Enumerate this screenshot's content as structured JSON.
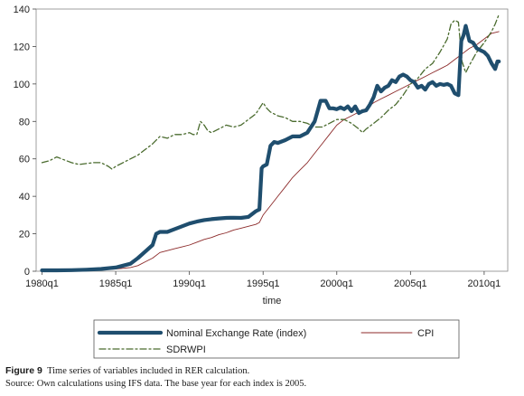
{
  "chart_data": {
    "type": "line",
    "xlabel": "time",
    "ylabel": "",
    "ylim": [
      0,
      140
    ],
    "y_ticks": [
      "0",
      "20",
      "40",
      "60",
      "80",
      "100",
      "120",
      "140"
    ],
    "x_ticks": [
      {
        "t": 1980.0,
        "label": "1980q1"
      },
      {
        "t": 1985.0,
        "label": "1985q1"
      },
      {
        "t": 1990.0,
        "label": "1990q1"
      },
      {
        "t": 1995.0,
        "label": "1995q1"
      },
      {
        "t": 2000.0,
        "label": "2000q1"
      },
      {
        "t": 2005.0,
        "label": "2005q1"
      },
      {
        "t": 2010.0,
        "label": "2010q1"
      }
    ],
    "xlim": [
      1979.6,
      2011.6
    ],
    "grid": false,
    "legend_position": "bottom",
    "series": [
      {
        "name": "Nominal Exchange Rate (index)",
        "color": "#1f4e6e",
        "style": "thick",
        "points": [
          [
            1980.0,
            0.5
          ],
          [
            1981.0,
            0.5
          ],
          [
            1982.0,
            0.6
          ],
          [
            1983.0,
            0.8
          ],
          [
            1984.0,
            1.2
          ],
          [
            1985.0,
            2
          ],
          [
            1985.5,
            3
          ],
          [
            1986.0,
            4
          ],
          [
            1986.5,
            7
          ],
          [
            1987.0,
            10.5
          ],
          [
            1987.5,
            14
          ],
          [
            1987.75,
            20
          ],
          [
            1988.0,
            21
          ],
          [
            1988.5,
            21
          ],
          [
            1989.0,
            22.5
          ],
          [
            1989.5,
            24
          ],
          [
            1990.0,
            25.5
          ],
          [
            1990.5,
            26.5
          ],
          [
            1991.0,
            27.3
          ],
          [
            1991.5,
            27.8
          ],
          [
            1992.0,
            28.2
          ],
          [
            1992.5,
            28.5
          ],
          [
            1993.0,
            28.6
          ],
          [
            1993.5,
            28.5
          ],
          [
            1994.0,
            29
          ],
          [
            1994.25,
            30.5
          ],
          [
            1994.5,
            32
          ],
          [
            1994.75,
            33
          ],
          [
            1994.9,
            55
          ],
          [
            1995.0,
            56
          ],
          [
            1995.25,
            57
          ],
          [
            1995.5,
            67
          ],
          [
            1995.75,
            69
          ],
          [
            1996.0,
            68.5
          ],
          [
            1996.5,
            70
          ],
          [
            1997.0,
            72
          ],
          [
            1997.5,
            72
          ],
          [
            1998.0,
            74
          ],
          [
            1998.5,
            80
          ],
          [
            1998.9,
            91
          ],
          [
            1999.25,
            91
          ],
          [
            1999.5,
            87
          ],
          [
            1999.75,
            87
          ],
          [
            2000.0,
            86.5
          ],
          [
            2000.25,
            87.5
          ],
          [
            2000.5,
            86.5
          ],
          [
            2000.75,
            88
          ],
          [
            2001.0,
            85.5
          ],
          [
            2001.25,
            88
          ],
          [
            2001.5,
            84.5
          ],
          [
            2001.75,
            85.5
          ],
          [
            2002.0,
            86
          ],
          [
            2002.25,
            89
          ],
          [
            2002.5,
            93
          ],
          [
            2002.75,
            99
          ],
          [
            2003.0,
            96
          ],
          [
            2003.25,
            98
          ],
          [
            2003.5,
            99
          ],
          [
            2003.75,
            102
          ],
          [
            2004.0,
            101
          ],
          [
            2004.25,
            104
          ],
          [
            2004.5,
            105
          ],
          [
            2004.75,
            104
          ],
          [
            2005.0,
            102
          ],
          [
            2005.25,
            101
          ],
          [
            2005.5,
            98
          ],
          [
            2005.75,
            99
          ],
          [
            2006.0,
            97
          ],
          [
            2006.25,
            100
          ],
          [
            2006.5,
            101
          ],
          [
            2006.75,
            99
          ],
          [
            2007.0,
            100
          ],
          [
            2007.25,
            99.5
          ],
          [
            2007.5,
            100
          ],
          [
            2007.75,
            99
          ],
          [
            2008.0,
            95
          ],
          [
            2008.25,
            94
          ],
          [
            2008.45,
            123
          ],
          [
            2008.6,
            126
          ],
          [
            2008.75,
            131
          ],
          [
            2009.0,
            123
          ],
          [
            2009.25,
            122
          ],
          [
            2009.5,
            119
          ],
          [
            2009.75,
            118
          ],
          [
            2010.0,
            117
          ],
          [
            2010.25,
            115
          ],
          [
            2010.5,
            111
          ],
          [
            2010.75,
            108
          ],
          [
            2010.9,
            112
          ],
          [
            2011.0,
            112
          ]
        ]
      },
      {
        "name": "CPI",
        "color": "#8c2a2a",
        "style": "thin",
        "points": [
          [
            1980.0,
            0.2
          ],
          [
            1982.0,
            0.4
          ],
          [
            1984.0,
            0.8
          ],
          [
            1985.0,
            1.2
          ],
          [
            1986.0,
            2
          ],
          [
            1986.5,
            3
          ],
          [
            1987.0,
            5
          ],
          [
            1987.5,
            7
          ],
          [
            1988.0,
            10
          ],
          [
            1988.5,
            11
          ],
          [
            1989.0,
            12
          ],
          [
            1989.5,
            13
          ],
          [
            1990.0,
            14
          ],
          [
            1990.5,
            15.5
          ],
          [
            1991.0,
            17
          ],
          [
            1991.5,
            18
          ],
          [
            1992.0,
            19.5
          ],
          [
            1992.5,
            20.5
          ],
          [
            1993.0,
            22
          ],
          [
            1993.5,
            23
          ],
          [
            1994.0,
            24
          ],
          [
            1994.5,
            25
          ],
          [
            1994.75,
            26
          ],
          [
            1995.0,
            30
          ],
          [
            1995.5,
            35
          ],
          [
            1996.0,
            40
          ],
          [
            1996.5,
            45
          ],
          [
            1997.0,
            50
          ],
          [
            1997.5,
            54
          ],
          [
            1998.0,
            58
          ],
          [
            1998.5,
            63
          ],
          [
            1999.0,
            68
          ],
          [
            1999.5,
            73
          ],
          [
            2000.0,
            78
          ],
          [
            2000.5,
            81
          ],
          [
            2001.0,
            83
          ],
          [
            2001.5,
            85
          ],
          [
            2002.0,
            87
          ],
          [
            2002.5,
            90
          ],
          [
            2003.0,
            92
          ],
          [
            2003.5,
            94
          ],
          [
            2004.0,
            96
          ],
          [
            2004.5,
            98
          ],
          [
            2005.0,
            100
          ],
          [
            2005.5,
            102
          ],
          [
            2006.0,
            104
          ],
          [
            2006.5,
            106
          ],
          [
            2007.0,
            108
          ],
          [
            2007.5,
            110
          ],
          [
            2008.0,
            113
          ],
          [
            2008.5,
            116
          ],
          [
            2009.0,
            119
          ],
          [
            2009.5,
            121
          ],
          [
            2010.0,
            124
          ],
          [
            2010.5,
            127
          ],
          [
            2011.0,
            128
          ]
        ]
      },
      {
        "name": "SDRWPI",
        "color": "#4a6b2e",
        "style": "dashdot",
        "points": [
          [
            1980.0,
            58
          ],
          [
            1980.5,
            59
          ],
          [
            1981.0,
            61
          ],
          [
            1981.5,
            59.5
          ],
          [
            1982.0,
            58
          ],
          [
            1982.5,
            57
          ],
          [
            1983.0,
            57.5
          ],
          [
            1983.5,
            58
          ],
          [
            1984.0,
            58
          ],
          [
            1984.5,
            56
          ],
          [
            1984.75,
            54.5
          ],
          [
            1985.0,
            56
          ],
          [
            1985.5,
            58
          ],
          [
            1986.0,
            60
          ],
          [
            1986.5,
            62
          ],
          [
            1987.0,
            65
          ],
          [
            1987.5,
            68
          ],
          [
            1988.0,
            72
          ],
          [
            1988.5,
            71
          ],
          [
            1989.0,
            73
          ],
          [
            1989.5,
            73
          ],
          [
            1990.0,
            74
          ],
          [
            1990.25,
            73
          ],
          [
            1990.5,
            73
          ],
          [
            1990.75,
            80
          ],
          [
            1991.0,
            78
          ],
          [
            1991.25,
            75
          ],
          [
            1991.5,
            74
          ],
          [
            1992.0,
            76
          ],
          [
            1992.5,
            78
          ],
          [
            1993.0,
            77
          ],
          [
            1993.5,
            78
          ],
          [
            1994.0,
            81
          ],
          [
            1994.5,
            84
          ],
          [
            1995.0,
            90
          ],
          [
            1995.25,
            87
          ],
          [
            1995.5,
            85
          ],
          [
            1996.0,
            83
          ],
          [
            1996.5,
            82
          ],
          [
            1997.0,
            80
          ],
          [
            1997.5,
            80
          ],
          [
            1998.0,
            79
          ],
          [
            1998.5,
            77
          ],
          [
            1999.0,
            77
          ],
          [
            1999.5,
            79
          ],
          [
            2000.0,
            81
          ],
          [
            2000.5,
            81
          ],
          [
            2001.0,
            79
          ],
          [
            2001.5,
            76
          ],
          [
            2001.75,
            74
          ],
          [
            2002.0,
            76
          ],
          [
            2002.5,
            79
          ],
          [
            2003.0,
            82
          ],
          [
            2003.5,
            86
          ],
          [
            2004.0,
            89
          ],
          [
            2004.5,
            94
          ],
          [
            2005.0,
            100
          ],
          [
            2005.5,
            103
          ],
          [
            2006.0,
            108
          ],
          [
            2006.5,
            111
          ],
          [
            2007.0,
            117
          ],
          [
            2007.5,
            124
          ],
          [
            2007.75,
            132
          ],
          [
            2008.0,
            134
          ],
          [
            2008.25,
            133
          ],
          [
            2008.5,
            112
          ],
          [
            2008.75,
            106
          ],
          [
            2009.0,
            110
          ],
          [
            2009.5,
            117
          ],
          [
            2010.0,
            122
          ],
          [
            2010.5,
            128
          ],
          [
            2010.75,
            132
          ],
          [
            2011.0,
            137
          ]
        ]
      }
    ]
  },
  "caption": {
    "figure_label": "Figure 9",
    "figure_text": "Time series of variables included in RER calculation.",
    "source_text": "Source: Own calculations using IFS data. The base year for each index is 2005."
  }
}
